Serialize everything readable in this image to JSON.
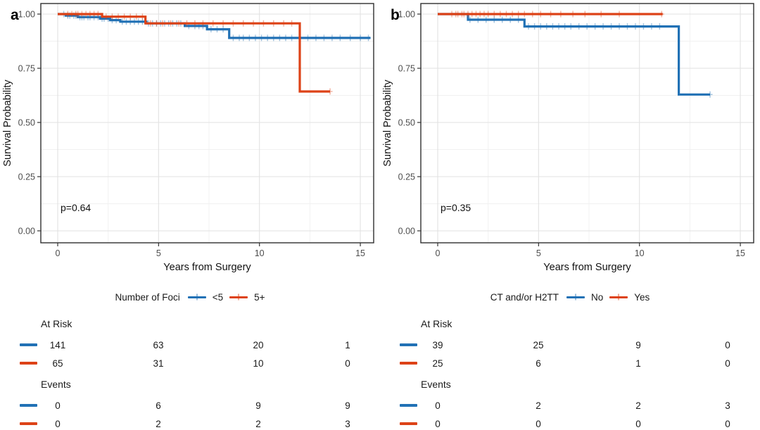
{
  "figure": {
    "background": "#ffffff"
  },
  "colors": {
    "series_blue": "#2171b5",
    "series_red": "#dd4217",
    "grid_major": "#e2e2e2",
    "grid_minor": "#f1f1f1",
    "panel_border": "#2f2f2f",
    "tick_text": "#4d4d4d",
    "text": "#1a1a1a"
  },
  "chart_data": [
    {
      "panel_label": "a",
      "type": "line",
      "subtype": "kaplan-meier-step",
      "xlabel": "Years from Surgery",
      "ylabel": "Survival Probability",
      "xlim": [
        0,
        15.6
      ],
      "ylim": [
        0,
        1.05
      ],
      "xticks": [
        0,
        5,
        10,
        15
      ],
      "ytick_labels": [
        "0.00",
        "0.25",
        "0.50",
        "0.75",
        "1.00"
      ],
      "ytick_values": [
        0,
        0.25,
        0.5,
        0.75,
        1.0
      ],
      "grid": "major+minor",
      "pvalue": "p=0.64",
      "legend": {
        "position": "bottom-center",
        "title": "Number of Foci",
        "entries": [
          {
            "label": "<5",
            "color": "#2171b5"
          },
          {
            "label": "5+",
            "color": "#dd4217"
          }
        ]
      },
      "series": [
        {
          "name": "<5",
          "color": "#2171b5",
          "steps": [
            [
              0,
              1.0
            ],
            [
              0.4,
              0.993
            ],
            [
              1.0,
              0.986
            ],
            [
              2.1,
              0.979
            ],
            [
              2.6,
              0.972
            ],
            [
              3.1,
              0.965
            ],
            [
              4.4,
              0.957
            ],
            [
              6.3,
              0.945
            ],
            [
              7.4,
              0.93
            ],
            [
              8.5,
              0.89
            ]
          ],
          "end": 15.5,
          "censor_times": [
            0.3,
            0.5,
            0.6,
            0.8,
            0.9,
            1.1,
            1.2,
            1.3,
            1.5,
            1.6,
            1.8,
            2.0,
            2.2,
            2.3,
            2.5,
            2.7,
            2.9,
            3.2,
            3.4,
            3.6,
            3.8,
            4.0,
            4.2,
            4.5,
            4.7,
            4.9,
            5.1,
            5.3,
            5.5,
            5.7,
            5.9,
            6.1,
            6.5,
            6.8,
            7.0,
            7.2,
            7.6,
            7.9,
            8.2,
            8.7,
            9.0,
            9.2,
            9.5,
            9.8,
            10.1,
            10.4,
            10.7,
            11.0,
            11.3,
            11.6,
            12.0,
            12.4,
            12.8,
            13.2,
            13.6,
            14.0,
            14.5,
            15.0,
            15.4
          ]
        },
        {
          "name": "5+",
          "color": "#dd4217",
          "steps": [
            [
              0,
              1.0
            ],
            [
              2.2,
              0.988
            ],
            [
              4.35,
              0.957
            ],
            [
              12.0,
              0.643
            ]
          ],
          "end": 13.5,
          "censor_times": [
            0.5,
            0.7,
            0.9,
            1.0,
            1.2,
            1.4,
            1.6,
            1.8,
            2.0,
            2.4,
            2.7,
            3.0,
            3.3,
            3.6,
            3.9,
            4.2,
            4.6,
            4.9,
            5.2,
            5.6,
            6.0,
            6.4,
            6.8,
            7.2,
            7.7,
            8.2,
            8.7,
            9.2,
            9.7,
            10.2,
            10.7,
            11.2,
            11.6,
            13.5
          ]
        }
      ],
      "risk_table": {
        "times": [
          0,
          5,
          10,
          15
        ],
        "at_risk_label": "At Risk",
        "events_label": "Events",
        "at_risk": [
          {
            "name": "<5",
            "color": "#2171b5",
            "values": [
              141,
              63,
              20,
              1
            ]
          },
          {
            "name": "5+",
            "color": "#dd4217",
            "values": [
              65,
              31,
              10,
              0
            ]
          }
        ],
        "events": [
          {
            "name": "<5",
            "color": "#2171b5",
            "values": [
              0,
              6,
              9,
              9
            ]
          },
          {
            "name": "5+",
            "color": "#dd4217",
            "values": [
              0,
              2,
              2,
              3
            ]
          }
        ]
      }
    },
    {
      "panel_label": "b",
      "type": "line",
      "subtype": "kaplan-meier-step",
      "xlabel": "Years from Surgery",
      "ylabel": "Survival Probability",
      "xlim": [
        0,
        15.6
      ],
      "ylim": [
        0,
        1.05
      ],
      "xticks": [
        0,
        5,
        10,
        15
      ],
      "ytick_labels": [
        "0.00",
        "0.25",
        "0.50",
        "0.75",
        "1.00"
      ],
      "ytick_values": [
        0,
        0.25,
        0.5,
        0.75,
        1.0
      ],
      "grid": "major+minor",
      "pvalue": "p=0.35",
      "legend": {
        "position": "bottom-center",
        "title": "CT and/or H2TT",
        "entries": [
          {
            "label": "No",
            "color": "#2171b5"
          },
          {
            "label": "Yes",
            "color": "#dd4217"
          }
        ]
      },
      "series": [
        {
          "name": "No",
          "color": "#2171b5",
          "steps": [
            [
              0,
              1.0
            ],
            [
              1.5,
              0.974
            ],
            [
              4.3,
              0.943
            ],
            [
              11.95,
              0.629
            ]
          ],
          "end": 13.5,
          "censor_times": [
            1.6,
            2.0,
            2.4,
            2.8,
            3.2,
            3.6,
            4.0,
            4.5,
            4.8,
            5.1,
            5.4,
            5.7,
            6.0,
            6.3,
            6.6,
            7.0,
            7.4,
            7.8,
            8.2,
            8.6,
            9.0,
            9.4,
            9.8,
            10.2,
            10.6,
            11.0,
            13.5
          ]
        },
        {
          "name": "Yes",
          "color": "#dd4217",
          "steps": [
            [
              0,
              1.0
            ]
          ],
          "end": 11.15,
          "censor_times": [
            0.7,
            0.9,
            1.0,
            1.2,
            1.3,
            1.5,
            1.7,
            1.9,
            2.1,
            2.3,
            2.5,
            2.8,
            3.1,
            3.4,
            3.7,
            4.0,
            4.3,
            4.7,
            5.1,
            5.6,
            6.1,
            6.7,
            7.3,
            8.1,
            9.0,
            11.1
          ]
        }
      ],
      "risk_table": {
        "times": [
          0,
          5,
          10,
          15
        ],
        "at_risk_label": "At Risk",
        "events_label": "Events",
        "at_risk": [
          {
            "name": "No",
            "color": "#2171b5",
            "values": [
              39,
              25,
              9,
              0
            ]
          },
          {
            "name": "Yes",
            "color": "#dd4217",
            "values": [
              25,
              6,
              1,
              0
            ]
          }
        ],
        "events": [
          {
            "name": "No",
            "color": "#2171b5",
            "values": [
              0,
              2,
              2,
              3
            ]
          },
          {
            "name": "Yes",
            "color": "#dd4217",
            "values": [
              0,
              0,
              0,
              0
            ]
          }
        ]
      }
    }
  ]
}
